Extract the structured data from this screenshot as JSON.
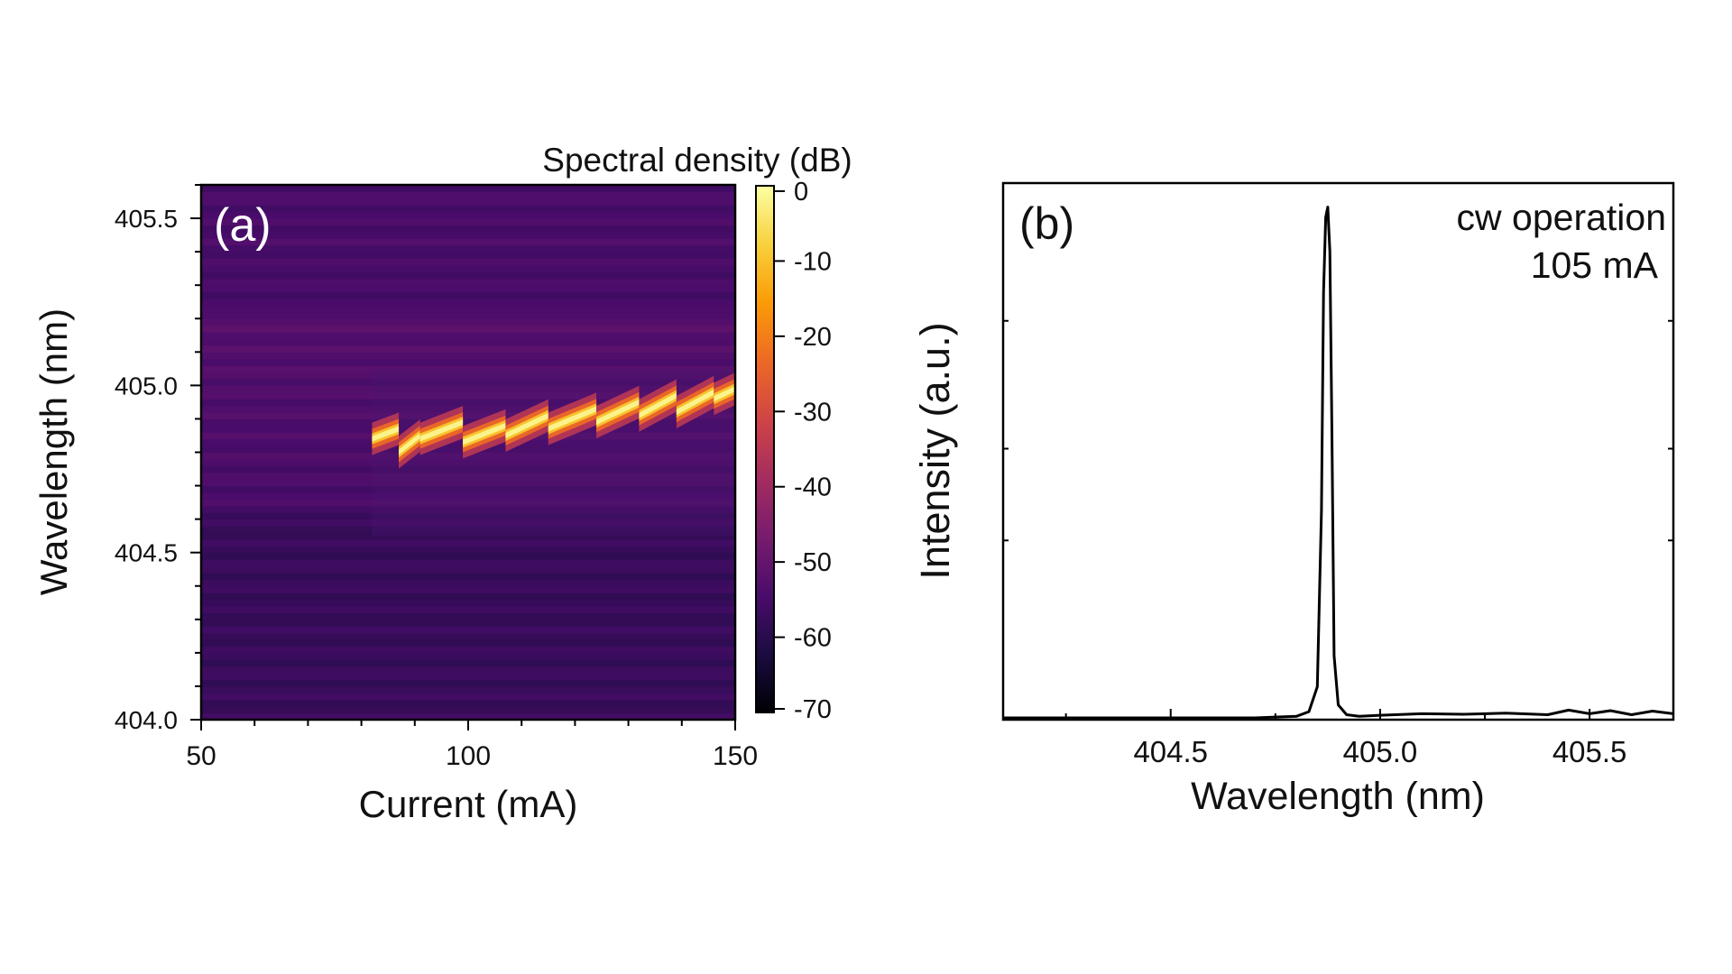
{
  "chart_data": [
    {
      "type": "heatmap",
      "panel_label": "(a)",
      "xlabel": "Current (mA)",
      "ylabel": "Wavelength (nm)",
      "xlim": [
        50,
        150
      ],
      "ylim": [
        404.0,
        405.6
      ],
      "x_ticks": [
        "50",
        "100",
        "150"
      ],
      "x_tick_values": [
        50,
        100,
        150
      ],
      "y_ticks": [
        "404.0",
        "404.5",
        "405.0",
        "405.5"
      ],
      "y_tick_values": [
        404.0,
        404.5,
        405.0,
        405.5
      ],
      "colorbar": {
        "title": "Spectral density (dB)",
        "range": [
          -70,
          0
        ],
        "ticks": [
          "0",
          "-10",
          "-20",
          "-30",
          "-40",
          "-50",
          "-60",
          "-70"
        ],
        "tick_values": [
          0,
          -10,
          -20,
          -30,
          -40,
          -50,
          -60,
          -70
        ],
        "colormap": [
          "#000004",
          "#1b0c41",
          "#4a0c6b",
          "#781c6d",
          "#a52c60",
          "#cf4446",
          "#ed6925",
          "#fb9b06",
          "#f7d13d",
          "#fcffa4"
        ]
      },
      "background_db": -55,
      "lasing_threshold_ma": 82,
      "mode_segments": [
        {
          "i_start": 82,
          "i_end": 87,
          "wl_start": 404.84,
          "wl_end": 404.87
        },
        {
          "i_start": 87,
          "i_end": 91,
          "wl_start": 404.8,
          "wl_end": 404.85
        },
        {
          "i_start": 91,
          "i_end": 99,
          "wl_start": 404.84,
          "wl_end": 404.89
        },
        {
          "i_start": 99,
          "i_end": 107,
          "wl_start": 404.83,
          "wl_end": 404.88
        },
        {
          "i_start": 107,
          "i_end": 115,
          "wl_start": 404.85,
          "wl_end": 404.91
        },
        {
          "i_start": 115,
          "i_end": 124,
          "wl_start": 404.87,
          "wl_end": 404.93
        },
        {
          "i_start": 124,
          "i_end": 132,
          "wl_start": 404.89,
          "wl_end": 404.95
        },
        {
          "i_start": 132,
          "i_end": 139,
          "wl_start": 404.91,
          "wl_end": 404.97
        },
        {
          "i_start": 139,
          "i_end": 146,
          "wl_start": 404.92,
          "wl_end": 404.98
        },
        {
          "i_start": 146,
          "i_end": 150,
          "wl_start": 404.96,
          "wl_end": 404.99
        }
      ]
    },
    {
      "type": "line",
      "panel_label": "(b)",
      "annotation": [
        "cw operation",
        "105 mA"
      ],
      "xlabel": "Wavelength (nm)",
      "ylabel": "Intensity (a.u.)",
      "xlim": [
        404.1,
        405.7
      ],
      "ylim": [
        0,
        1.0
      ],
      "x_ticks": [
        "404.5",
        "405.0",
        "405.5"
      ],
      "x_tick_values": [
        404.5,
        405.0,
        405.5
      ],
      "series": [
        {
          "x": [
            404.1,
            404.7,
            404.8,
            404.83,
            404.85,
            404.86,
            404.865,
            404.87,
            404.875,
            404.88,
            404.885,
            404.89,
            404.9,
            404.92,
            404.95,
            405.0,
            405.1,
            405.2,
            405.3,
            405.4,
            405.45,
            405.5,
            405.55,
            405.6,
            405.65,
            405.7
          ],
          "y": [
            0.0,
            0.0,
            0.003,
            0.012,
            0.06,
            0.4,
            0.82,
            0.965,
            0.985,
            0.9,
            0.55,
            0.12,
            0.025,
            0.006,
            0.003,
            0.005,
            0.008,
            0.007,
            0.009,
            0.006,
            0.015,
            0.008,
            0.014,
            0.006,
            0.013,
            0.008
          ]
        }
      ]
    }
  ]
}
